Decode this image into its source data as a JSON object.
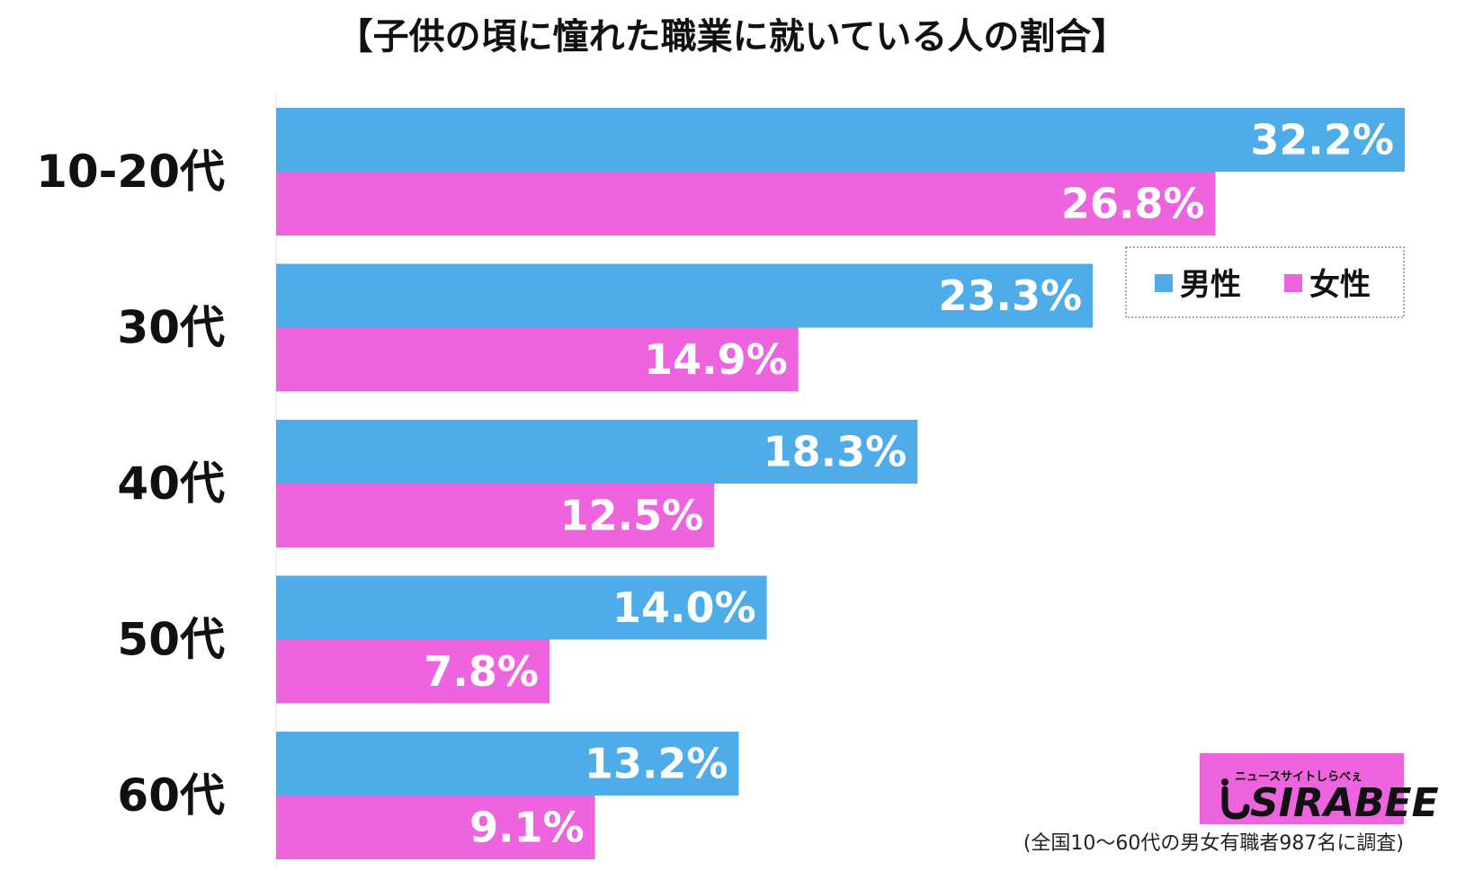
{
  "chart_data": {
    "type": "bar",
    "orientation": "horizontal",
    "title": "【子供の頃に憧れた職業に就いている人の割合】",
    "categories": [
      "10-20代",
      "30代",
      "40代",
      "50代",
      "60代"
    ],
    "series": [
      {
        "name": "男性",
        "color": "#4eade8",
        "values": [
          32.2,
          23.3,
          18.3,
          14.0,
          13.2
        ],
        "labels": [
          "32.2%",
          "23.3%",
          "18.3%",
          "14.0%",
          "13.2%"
        ]
      },
      {
        "name": "女性",
        "color": "#ee63de",
        "values": [
          26.8,
          14.9,
          12.5,
          7.8,
          9.1
        ],
        "labels": [
          "26.8%",
          "14.9%",
          "12.5%",
          "7.8%",
          "9.1%"
        ]
      }
    ],
    "xlim": [
      0,
      32.2
    ],
    "grid": false,
    "legend_position": "top-right",
    "note": "(全国10〜60代の男女有職者987名に調査)"
  },
  "logo": {
    "text": "SIRABEE",
    "tagline": "ニュースサイトしらべぇ",
    "background": "#ee63de"
  }
}
